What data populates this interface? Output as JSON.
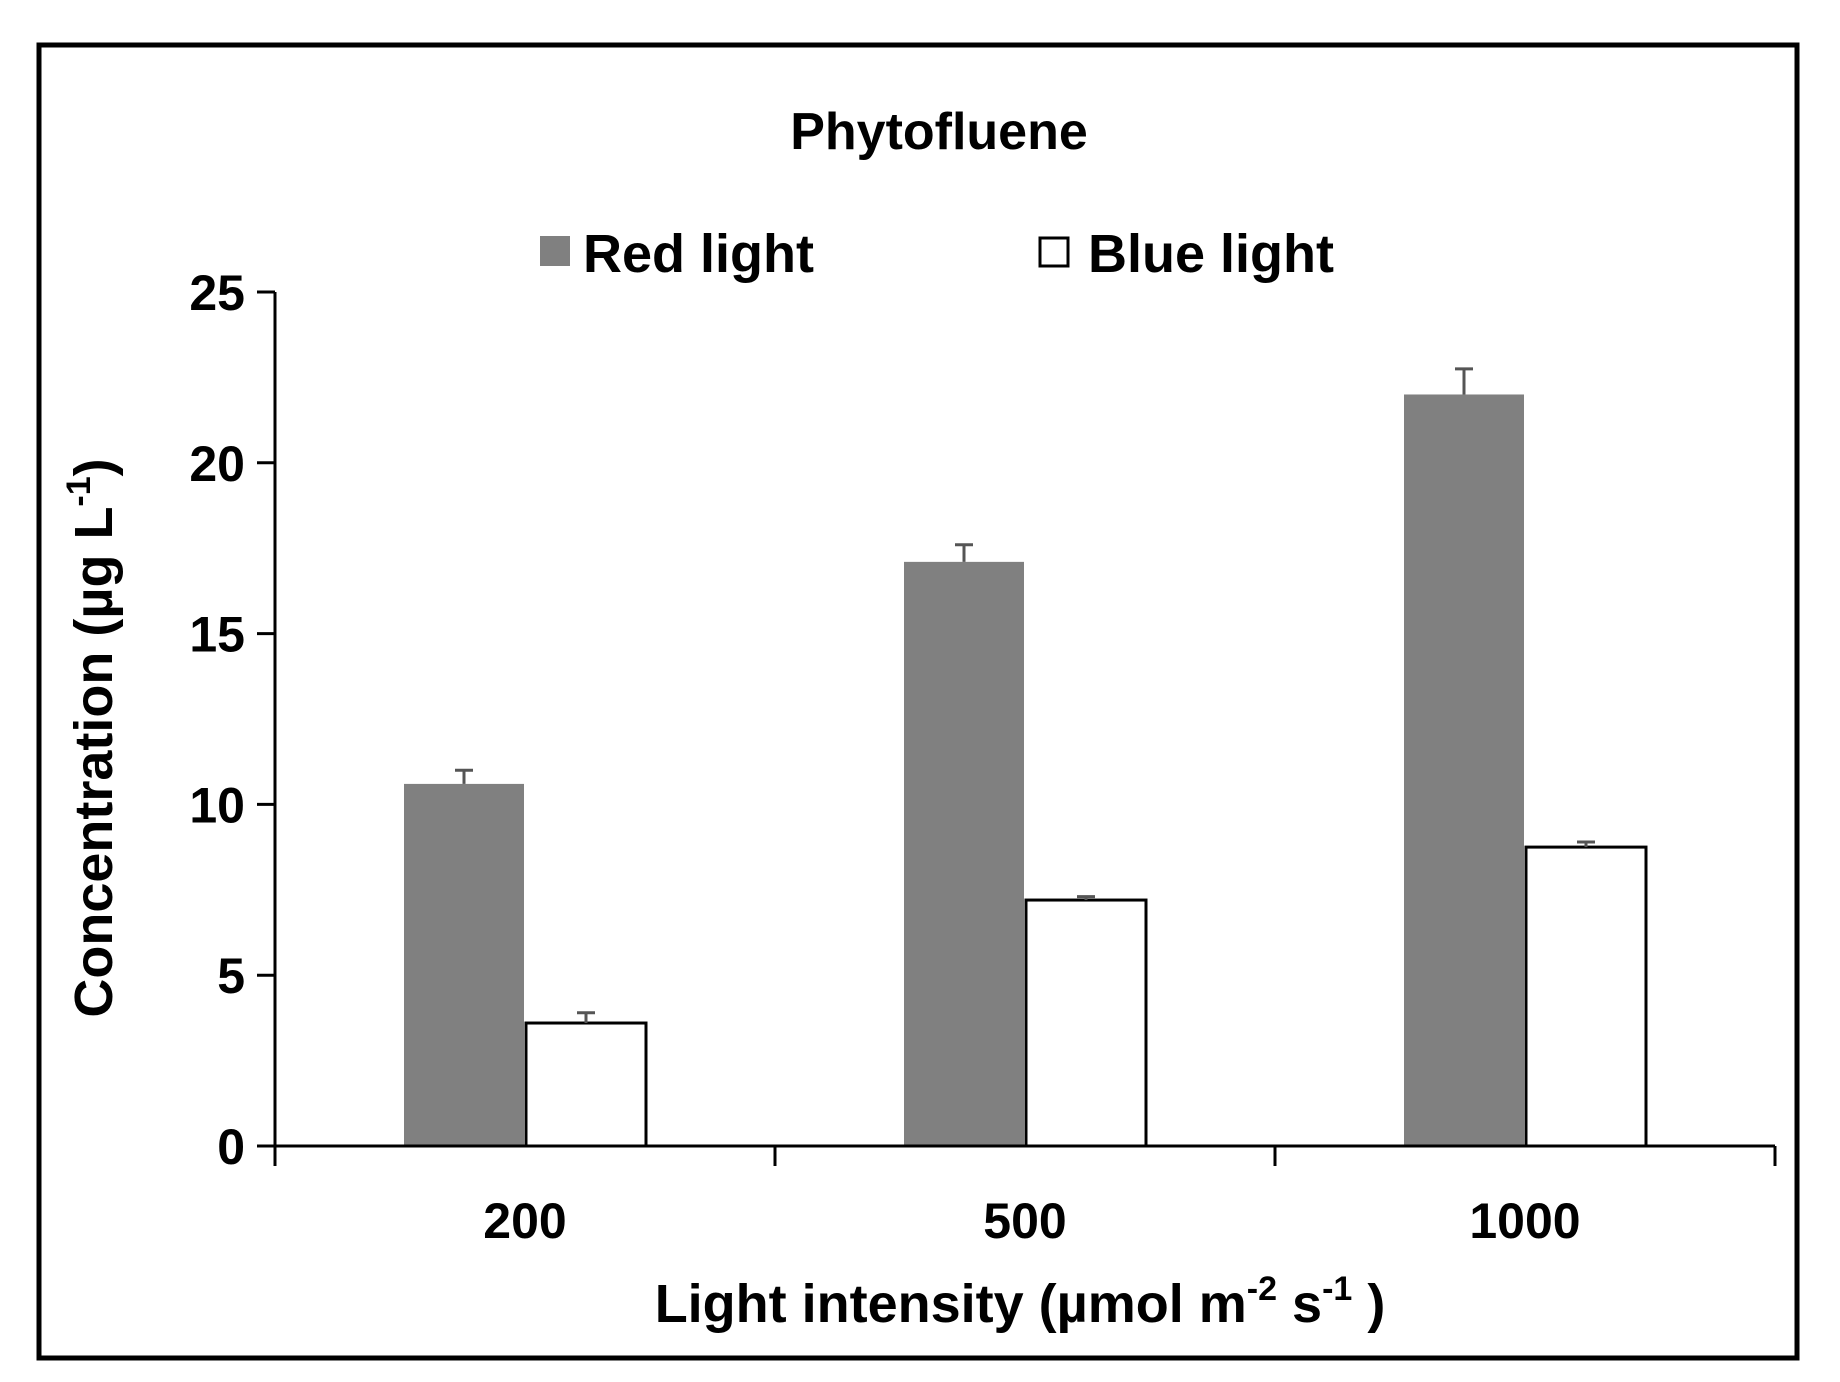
{
  "chart_data": {
    "type": "bar",
    "title": "Phytofluene",
    "xlabel": "Light intensity (µmol m",
    "xlabel_sup1": "-2",
    "xlabel_mid": " s",
    "xlabel_sup2": "-1",
    "xlabel_end": " )",
    "ylabel": "Concentration (µg L",
    "ylabel_sup": "-1",
    "ylabel_end": ")",
    "categories": [
      "200",
      "500",
      "1000"
    ],
    "ylim": [
      0,
      25
    ],
    "yticks": [
      0,
      5,
      10,
      15,
      20,
      25
    ],
    "legend_position": "top",
    "grid": false,
    "series": [
      {
        "name": "Red light",
        "color": "#808080",
        "values": [
          10.6,
          17.1,
          22.0
        ],
        "errors": [
          0.4,
          0.5,
          0.75
        ]
      },
      {
        "name": "Blue light",
        "color": "#ffffff",
        "values": [
          3.6,
          7.2,
          8.75
        ],
        "errors": [
          0.3,
          0.1,
          0.15
        ]
      }
    ]
  }
}
